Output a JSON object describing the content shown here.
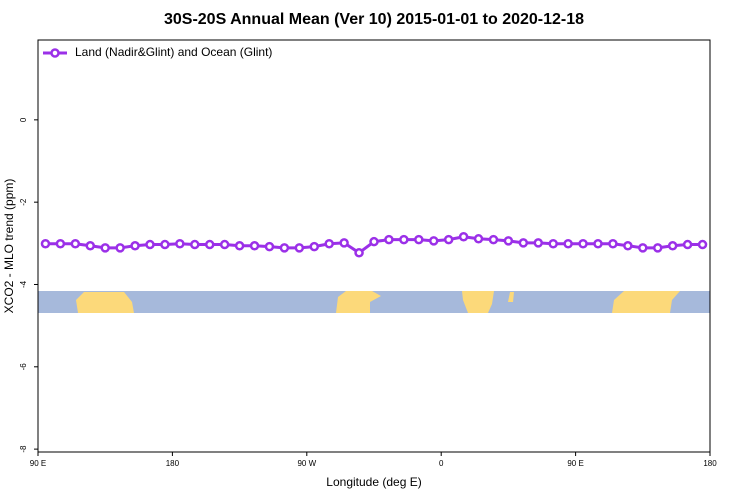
{
  "chart_data": {
    "type": "line",
    "title": "30S-20S Annual Mean (Ver 10)   2015-01-01 to 2020-12-18",
    "x_label": "Longitude (deg E)",
    "y_label": "XCO2 - MLO trend (ppm)",
    "xlim": [
      90,
      540
    ],
    "ylim": [
      -8.07,
      1.94
    ],
    "xticks": [
      {
        "value": 90,
        "label": "90 E"
      },
      180,
      {
        "value": 270,
        "label": "90 W"
      },
      {
        "value": 360,
        "label": "0"
      },
      {
        "value": 450,
        "label": "90 E"
      },
      {
        "value": 540,
        "label": "180"
      }
    ],
    "yticks": [
      0,
      -2,
      -4,
      -6,
      -8
    ],
    "legend": "top-left",
    "x": [
      95,
      105,
      115,
      125,
      135,
      145,
      155,
      165,
      175,
      185,
      195,
      205,
      215,
      225,
      235,
      245,
      255,
      265,
      275,
      285,
      295,
      305,
      315,
      325,
      335,
      345,
      355,
      365,
      375,
      385,
      395,
      405,
      415,
      425,
      435,
      445,
      455,
      465,
      475,
      485,
      495,
      505,
      515,
      525,
      535
    ],
    "series": [
      {
        "name": "Land (Nadir&Glint) and Ocean (Glint)",
        "color": "#9b30e8",
        "values": [
          -3.01,
          -3.01,
          -3.01,
          -3.06,
          -3.11,
          -3.11,
          -3.06,
          -3.03,
          -3.03,
          -3.01,
          -3.03,
          -3.03,
          -3.03,
          -3.06,
          -3.06,
          -3.08,
          -3.11,
          -3.11,
          -3.08,
          -3.01,
          -2.99,
          -3.23,
          -2.96,
          -2.91,
          -2.91,
          -2.91,
          -2.94,
          -2.91,
          -2.84,
          -2.89,
          -2.91,
          -2.94,
          -2.99,
          -2.99,
          -3.01,
          -3.01,
          -3.01,
          -3.01,
          -3.01,
          -3.06,
          -3.11,
          -3.11,
          -3.06,
          -3.03,
          -3.03
        ]
      }
    ]
  }
}
